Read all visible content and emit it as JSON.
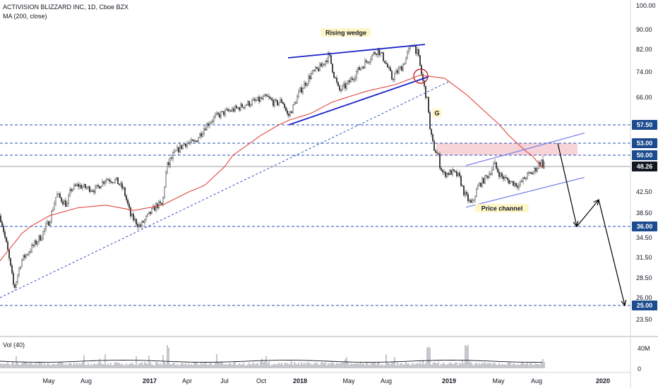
{
  "header": {
    "symbol": "ACTIVISION BLIZZARD INC, 1D, Cboe BZX",
    "indicator": "MA (200, close)",
    "volume_label": "Vol (40)"
  },
  "colors": {
    "candle": "#3a3a3a",
    "ma": "#e0473e",
    "wedge": "#1a22c8",
    "channel": "#7f86e6",
    "dashed": "#2a4fb8",
    "projection": "#000000",
    "zone": "#f7d4d8",
    "label_bg": "#1c4b8f",
    "price_bg": "#131722"
  },
  "chart_data": {
    "type": "candlestick",
    "title": "ACTIVISION BLIZZARD INC, 1D, Cboe BZX",
    "ylim": [
      21,
      100
    ],
    "x_ticks": [
      "May",
      "Aug",
      "2017",
      "Apr",
      "Jul",
      "Oct",
      "2018",
      "May",
      "Aug",
      "2019",
      "May",
      "Aug",
      "2020"
    ],
    "y_ticks": [
      100.0,
      90.0,
      82.0,
      74.0,
      66.0,
      42.5,
      38.5,
      34.5,
      31.5,
      28.5,
      26.0,
      23.5
    ],
    "price_path": [
      [
        0,
        38
      ],
      [
        10,
        33
      ],
      [
        20,
        27
      ],
      [
        30,
        31
      ],
      [
        45,
        33
      ],
      [
        60,
        35
      ],
      [
        70,
        37
      ],
      [
        80,
        42
      ],
      [
        95,
        40
      ],
      [
        100,
        43
      ],
      [
        110,
        44
      ],
      [
        120,
        43.5
      ],
      [
        135,
        43
      ],
      [
        150,
        45.5
      ],
      [
        165,
        45
      ],
      [
        175,
        43
      ],
      [
        185,
        38
      ],
      [
        198,
        36
      ],
      [
        210,
        38
      ],
      [
        222,
        40
      ],
      [
        230,
        40
      ],
      [
        236,
        48
      ],
      [
        250,
        51
      ],
      [
        262,
        53
      ],
      [
        275,
        53
      ],
      [
        290,
        57
      ],
      [
        305,
        60
      ],
      [
        320,
        61.5
      ],
      [
        335,
        62.5
      ],
      [
        350,
        64
      ],
      [
        365,
        65
      ],
      [
        378,
        66
      ],
      [
        390,
        64
      ],
      [
        400,
        65
      ],
      [
        408,
        60
      ],
      [
        415,
        63
      ],
      [
        425,
        68
      ],
      [
        440,
        73
      ],
      [
        455,
        76
      ],
      [
        466,
        80
      ],
      [
        472,
        74
      ],
      [
        480,
        68
      ],
      [
        492,
        70
      ],
      [
        505,
        74
      ],
      [
        520,
        78
      ],
      [
        535,
        82
      ],
      [
        545,
        78
      ],
      [
        555,
        72
      ],
      [
        570,
        76
      ],
      [
        578,
        81
      ],
      [
        585,
        84.5
      ],
      [
        592,
        80
      ],
      [
        598,
        72
      ],
      [
        606,
        64
      ],
      [
        608,
        57
      ],
      [
        614,
        52
      ],
      [
        620,
        50
      ],
      [
        628,
        46.5
      ],
      [
        640,
        47
      ],
      [
        650,
        46
      ],
      [
        658,
        42
      ],
      [
        668,
        40
      ],
      [
        678,
        44
      ],
      [
        690,
        46
      ],
      [
        700,
        48.5
      ],
      [
        710,
        46
      ],
      [
        720,
        45
      ],
      [
        735,
        44
      ],
      [
        745,
        46
      ],
      [
        755,
        47
      ],
      [
        765,
        49
      ],
      [
        772,
        48.5
      ]
    ],
    "ma_path": [
      [
        0,
        31
      ],
      [
        30,
        35
      ],
      [
        70,
        38
      ],
      [
        110,
        39.5
      ],
      [
        150,
        40
      ],
      [
        190,
        39
      ],
      [
        230,
        40
      ],
      [
        290,
        44
      ],
      [
        330,
        50
      ],
      [
        370,
        55
      ],
      [
        410,
        59
      ],
      [
        440,
        61
      ],
      [
        470,
        64.5
      ],
      [
        520,
        68
      ],
      [
        560,
        70
      ],
      [
        595,
        73
      ],
      [
        630,
        72
      ],
      [
        660,
        67
      ],
      [
        690,
        61
      ],
      [
        720,
        55
      ],
      [
        745,
        51
      ],
      [
        773,
        47.5
      ]
    ],
    "horizontal_levels": [
      57.5,
      53.0,
      50.0,
      36.0,
      25.0
    ],
    "current_price": 48.26,
    "resistance_zone": [
      50.0,
      53.0
    ],
    "projection_path": [
      [
        790,
        53
      ],
      [
        817,
        36
      ],
      [
        848,
        41
      ],
      [
        885,
        25
      ]
    ],
    "annotations": [
      "Rising wedge",
      "G",
      "Price channel"
    ],
    "volume": {
      "label": "Vol (40)",
      "y_ticks": [
        "40M",
        "0"
      ]
    }
  }
}
